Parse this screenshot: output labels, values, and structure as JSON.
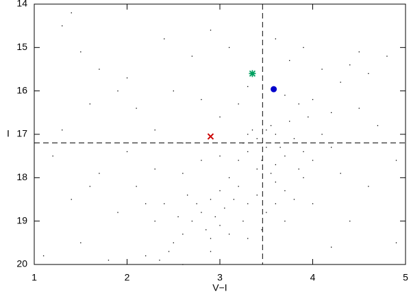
{
  "chart_data": {
    "type": "scatter",
    "x_label": "V−I",
    "y_label": "I",
    "xlim": [
      1,
      5
    ],
    "ylim": [
      14,
      20
    ],
    "y_inverted": true,
    "xticks": [
      1,
      2,
      3,
      4,
      5
    ],
    "yticks": [
      14,
      15,
      16,
      17,
      18,
      19,
      20
    ],
    "reference_lines": {
      "x": 3.46,
      "y": 17.2
    },
    "series": [
      {
        "marker": "dot",
        "color": "#000000",
        "x": [
          3.4,
          3.5,
          3.6,
          3.3,
          3.55,
          3.7,
          3.45,
          3.25,
          3.65,
          3.5,
          3.8,
          3.35,
          3.6,
          3.4,
          3.9,
          3.2,
          3.75,
          3.55,
          3.3,
          3.85,
          3.1,
          3.0,
          2.9,
          2.8,
          2.7,
          2.85,
          3.05,
          3.2,
          2.95,
          3.15,
          2.75,
          2.6,
          2.5,
          2.65,
          3.3,
          3.4,
          3.6,
          3.7,
          3.5,
          3.0,
          2.9,
          2.55,
          2.4,
          2.3,
          2.45,
          2.35,
          2.2,
          2.1,
          2.3,
          2.6,
          2.8,
          3.0,
          3.1,
          3.25,
          3.45,
          3.6,
          3.8,
          3.9,
          4.0,
          4.1,
          3.95,
          3.85,
          3.7,
          4.0,
          4.2,
          4.3,
          4.4,
          4.5,
          4.6,
          3.75,
          3.6,
          3.9,
          4.1,
          4.2,
          4.3,
          4.0,
          3.7,
          3.3,
          2.9,
          2.6,
          1.3,
          1.5,
          1.7,
          1.9,
          2.1,
          2.3,
          1.6,
          1.2,
          1.4,
          1.1,
          1.5,
          1.8,
          1.9,
          2.0,
          1.7,
          2.5,
          2.7,
          2.9,
          3.1,
          2.4,
          1.4,
          2.0,
          2.6,
          2.2,
          4.7,
          4.8,
          4.9,
          4.6,
          4.4,
          4.2,
          4.5,
          3.2,
          3.3,
          3.0,
          4.9,
          1.6,
          1.3,
          2.8
        ],
        "y": [
          17.1,
          17.3,
          17.0,
          17.4,
          16.8,
          17.5,
          17.6,
          17.2,
          17.3,
          16.9,
          17.1,
          16.9,
          17.7,
          17.8,
          17.4,
          17.6,
          16.7,
          17.9,
          17.0,
          17.8,
          18.0,
          18.3,
          18.5,
          18.8,
          19.0,
          19.2,
          18.7,
          18.2,
          18.9,
          18.5,
          18.6,
          19.3,
          19.5,
          18.4,
          18.6,
          18.4,
          18.1,
          18.3,
          18.8,
          19.1,
          19.4,
          18.9,
          18.6,
          19.0,
          19.7,
          19.9,
          19.8,
          18.2,
          17.8,
          17.9,
          17.6,
          17.5,
          19.3,
          19.0,
          19.2,
          18.6,
          18.5,
          18.0,
          17.6,
          17.0,
          16.6,
          16.3,
          16.1,
          16.2,
          16.5,
          15.8,
          15.4,
          15.1,
          15.6,
          15.3,
          14.8,
          15.0,
          15.5,
          17.3,
          17.9,
          18.6,
          19.0,
          19.4,
          19.7,
          20.0,
          14.5,
          15.1,
          15.5,
          16.0,
          16.4,
          16.9,
          16.3,
          17.5,
          18.5,
          19.8,
          19.5,
          19.9,
          18.8,
          17.4,
          17.9,
          16.0,
          15.2,
          14.6,
          15.0,
          14.8,
          14.2,
          15.7,
          17.2,
          18.6,
          16.8,
          15.2,
          17.6,
          18.2,
          19.0,
          19.6,
          16.4,
          16.3,
          15.9,
          16.6,
          19.5,
          18.2,
          16.9,
          16.2
        ]
      },
      {
        "marker": "cross",
        "color": "#cc0000",
        "x": [
          2.9
        ],
        "y": [
          17.05
        ]
      },
      {
        "marker": "asterisk",
        "color": "#00a060",
        "x": [
          3.35
        ],
        "y": [
          15.6
        ]
      },
      {
        "marker": "circle",
        "color": "#0000cc",
        "x": [
          3.58
        ],
        "y": [
          15.96
        ]
      }
    ]
  }
}
